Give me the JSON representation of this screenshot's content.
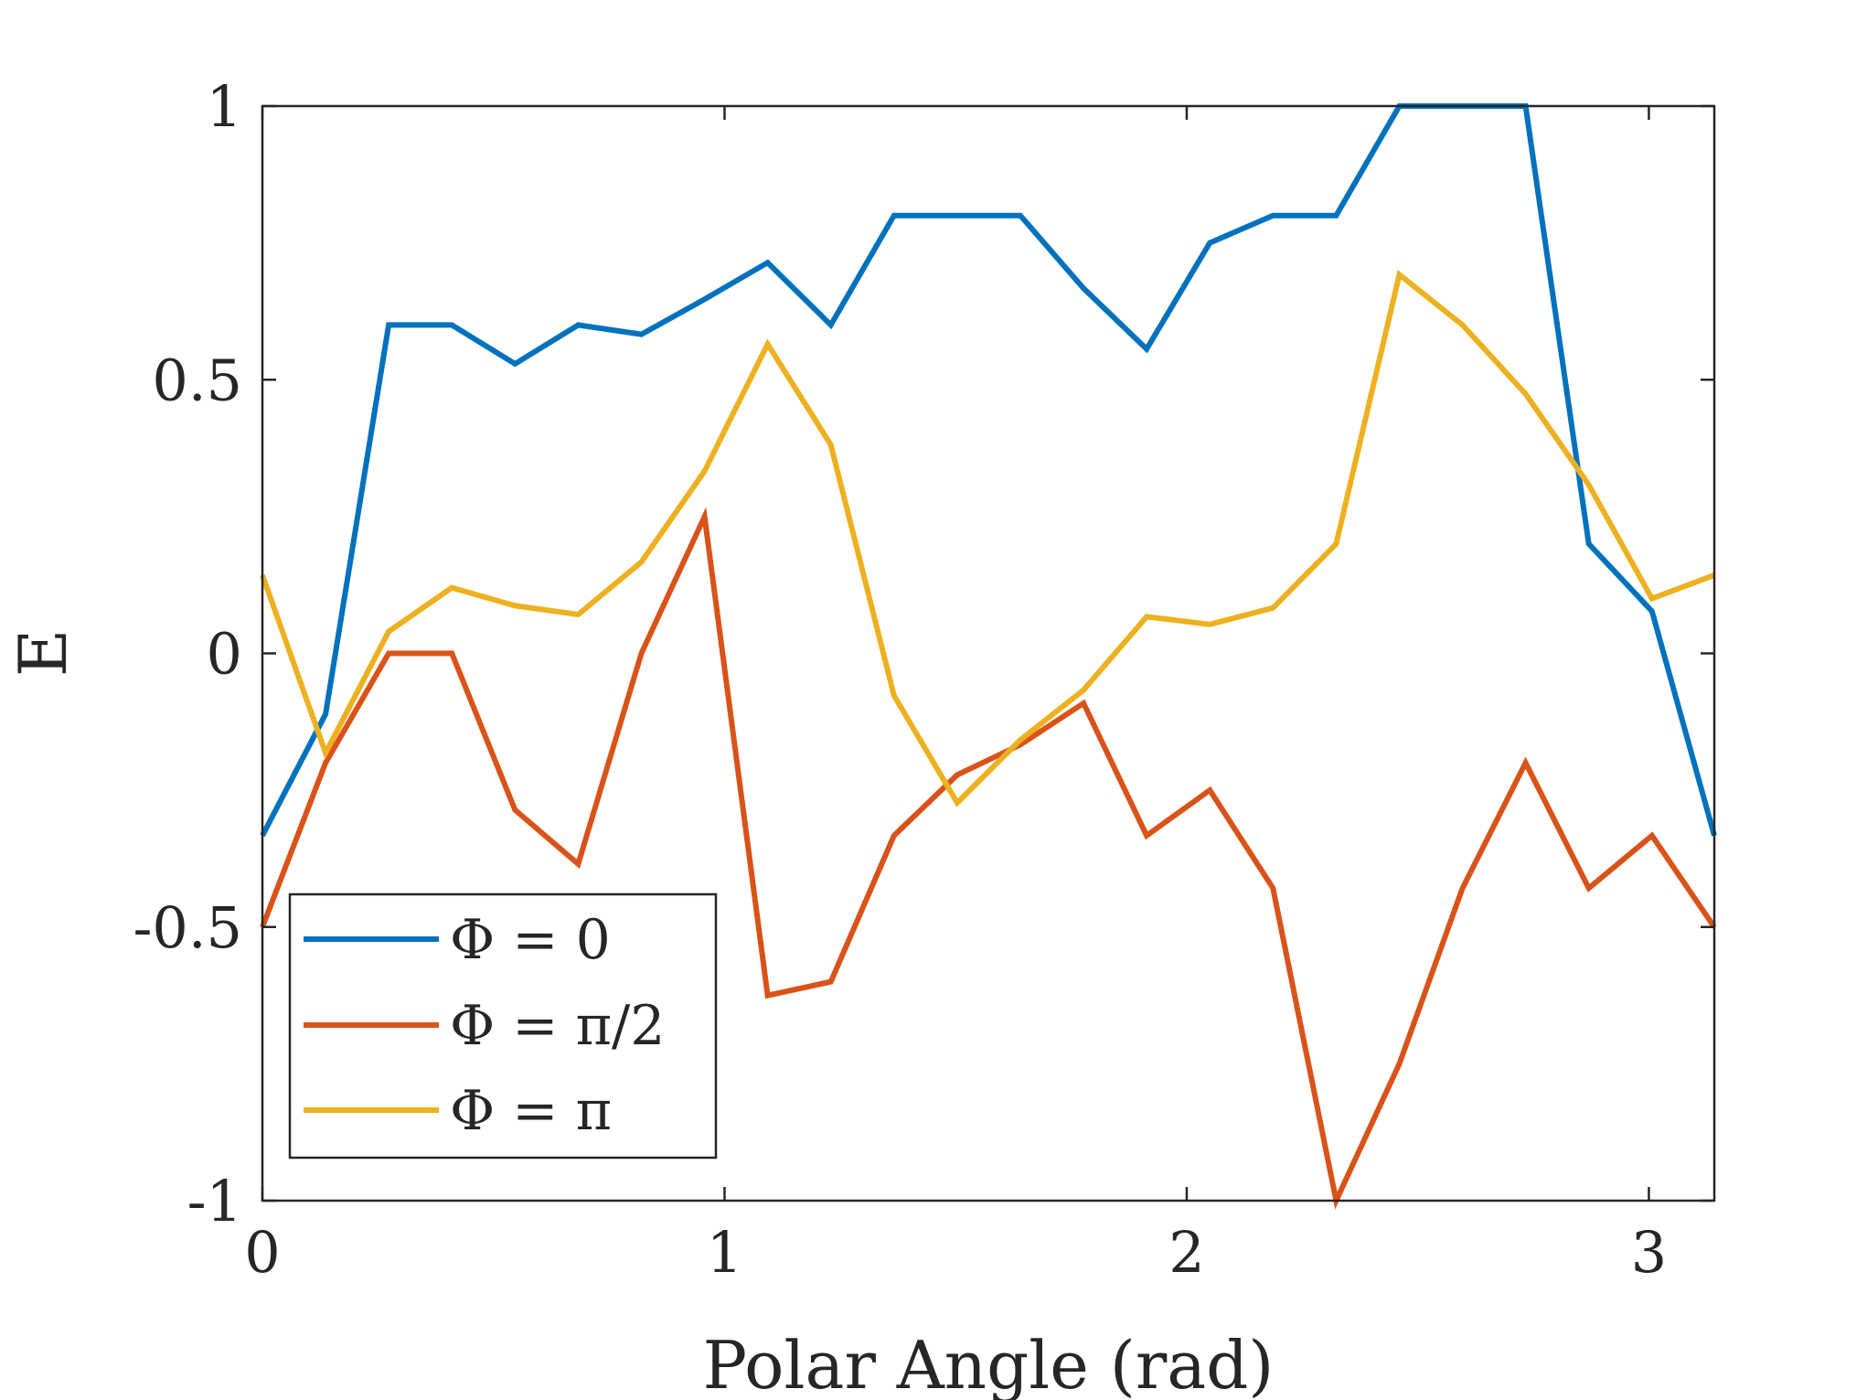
{
  "chart_data": {
    "type": "line",
    "title": "",
    "xlabel": "Polar Angle (rad)",
    "ylabel": "E",
    "xlim": [
      0,
      3.14159
    ],
    "ylim": [
      -1,
      1
    ],
    "xticks": [
      0,
      1,
      2,
      3
    ],
    "xtick_labels": [
      "0",
      "1",
      "2",
      "3"
    ],
    "yticks": [
      -1,
      -0.5,
      0,
      0.5,
      1
    ],
    "ytick_labels": [
      "-1",
      "-0.5",
      "0",
      "0.5",
      "1"
    ],
    "grid": false,
    "legend_position": "bottom-left",
    "x": [
      0,
      0.1367,
      0.2733,
      0.41,
      0.5467,
      0.6833,
      0.82,
      0.9567,
      1.0933,
      1.23,
      1.3667,
      1.5033,
      1.64,
      1.7767,
      1.9133,
      2.05,
      2.1867,
      2.3233,
      2.46,
      2.5967,
      2.7333,
      2.87,
      3.0067,
      3.1416
    ],
    "series": [
      {
        "name": "Φ = 0",
        "color": "#0072BD",
        "values": [
          -0.333,
          -0.111,
          0.6,
          0.6,
          0.529,
          0.6,
          0.583,
          0.647,
          0.714,
          0.6,
          0.8,
          0.8,
          0.8,
          0.667,
          0.556,
          0.75,
          0.8,
          0.8,
          1.0,
          1.0,
          1.0,
          0.2,
          0.077,
          -0.333
        ]
      },
      {
        "name": "Φ = π/2",
        "color": "#D95319",
        "values": [
          -0.5,
          -0.2,
          0.0,
          0.0,
          -0.286,
          -0.385,
          0.0,
          0.25,
          -0.625,
          -0.6,
          -0.333,
          -0.222,
          -0.167,
          -0.091,
          -0.333,
          -0.25,
          -0.429,
          -1.0,
          -0.75,
          -0.429,
          -0.2,
          -0.429,
          -0.333,
          -0.5
        ]
      },
      {
        "name": "Φ = π",
        "color": "#EDB120",
        "values": [
          0.143,
          -0.182,
          0.04,
          0.12,
          0.087,
          0.071,
          0.167,
          0.333,
          0.565,
          0.381,
          -0.077,
          -0.273,
          -0.158,
          -0.067,
          0.067,
          0.053,
          0.083,
          0.2,
          0.692,
          0.6,
          0.474,
          0.308,
          0.1,
          0.143
        ]
      }
    ]
  }
}
